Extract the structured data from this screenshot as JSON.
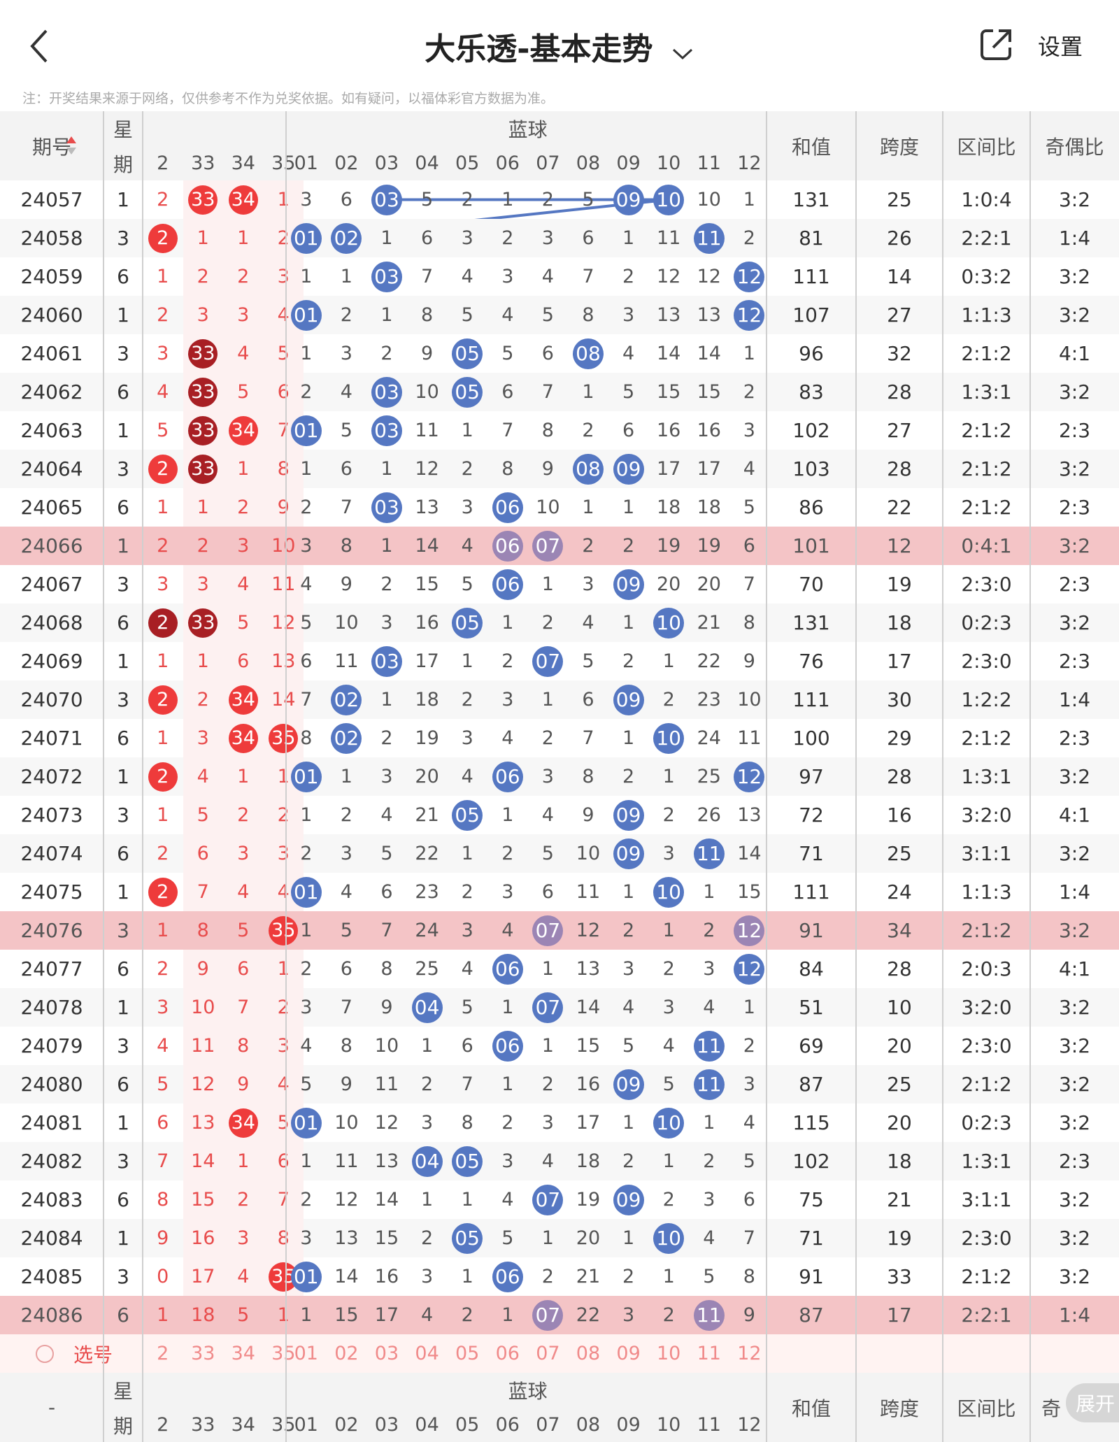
{
  "header": {
    "title": "大乐透-基本走势",
    "settings": "设置"
  },
  "note": "注：开奖结果来源于网络，仅供参考不作为兑奖依据。如有疑问，以福体彩官方数据为准。",
  "columns": {
    "period": "期号",
    "week_top": "星",
    "week_bottom": "期",
    "blue_title": "蓝球",
    "front_headers": [
      "2",
      "33",
      "34",
      "35"
    ],
    "blue_headers": [
      "01",
      "02",
      "03",
      "04",
      "05",
      "06",
      "07",
      "08",
      "09",
      "10",
      "11",
      "12"
    ],
    "sum": "和值",
    "span": "跨度",
    "zone": "区间比",
    "odd": "奇偶比"
  },
  "rows": [
    {
      "p": "24057",
      "w": "1",
      "f": [
        "2",
        "33",
        "34",
        "1"
      ],
      "fh": [
        0,
        1,
        1,
        0
      ],
      "b": [
        "3",
        "6",
        "03",
        "5",
        "2",
        "1",
        "2",
        "5",
        "09",
        "10",
        "10",
        "1"
      ],
      "s": "131",
      "sp": "25",
      "z": "1:0:4",
      "o": "3:2"
    },
    {
      "p": "24058",
      "w": "3",
      "f": [
        "2",
        "1",
        "1",
        "2"
      ],
      "fh": [
        1,
        0,
        0,
        0
      ],
      "b": [
        "01",
        "02",
        "1",
        "6",
        "3",
        "2",
        "3",
        "6",
        "1",
        "11",
        "11",
        "2"
      ],
      "s": "81",
      "sp": "26",
      "z": "2:2:1",
      "o": "1:4"
    },
    {
      "p": "24059",
      "w": "6",
      "f": [
        "1",
        "2",
        "2",
        "3"
      ],
      "fh": [
        0,
        0,
        0,
        0
      ],
      "b": [
        "1",
        "1",
        "03",
        "7",
        "4",
        "3",
        "4",
        "7",
        "2",
        "12",
        "12",
        "12"
      ],
      "s": "111",
      "sp": "14",
      "z": "0:3:2",
      "o": "3:2"
    },
    {
      "p": "24060",
      "w": "1",
      "f": [
        "2",
        "3",
        "3",
        "4"
      ],
      "fh": [
        0,
        0,
        0,
        0
      ],
      "b": [
        "01",
        "2",
        "1",
        "8",
        "5",
        "4",
        "5",
        "8",
        "3",
        "13",
        "13",
        "12"
      ],
      "s": "107",
      "sp": "27",
      "z": "1:1:3",
      "o": "3:2"
    },
    {
      "p": "24061",
      "w": "3",
      "f": [
        "3",
        "33",
        "4",
        "5"
      ],
      "fh": [
        0,
        2,
        0,
        0
      ],
      "b": [
        "1",
        "3",
        "2",
        "9",
        "05",
        "5",
        "6",
        "08",
        "4",
        "14",
        "14",
        "1"
      ],
      "s": "96",
      "sp": "32",
      "z": "2:1:2",
      "o": "4:1"
    },
    {
      "p": "24062",
      "w": "6",
      "f": [
        "4",
        "33",
        "5",
        "6"
      ],
      "fh": [
        0,
        2,
        0,
        0
      ],
      "b": [
        "2",
        "4",
        "03",
        "10",
        "05",
        "6",
        "7",
        "1",
        "5",
        "15",
        "15",
        "2"
      ],
      "s": "83",
      "sp": "28",
      "z": "1:3:1",
      "o": "3:2"
    },
    {
      "p": "24063",
      "w": "1",
      "f": [
        "5",
        "33",
        "34",
        "7"
      ],
      "fh": [
        0,
        2,
        1,
        0
      ],
      "b": [
        "01",
        "5",
        "03",
        "11",
        "1",
        "7",
        "8",
        "2",
        "6",
        "16",
        "16",
        "3"
      ],
      "s": "102",
      "sp": "27",
      "z": "2:1:2",
      "o": "2:3"
    },
    {
      "p": "24064",
      "w": "3",
      "f": [
        "2",
        "33",
        "1",
        "8"
      ],
      "fh": [
        1,
        2,
        0,
        0
      ],
      "b": [
        "1",
        "6",
        "1",
        "12",
        "2",
        "8",
        "9",
        "08",
        "09",
        "17",
        "17",
        "4"
      ],
      "s": "103",
      "sp": "28",
      "z": "2:1:2",
      "o": "3:2"
    },
    {
      "p": "24065",
      "w": "6",
      "f": [
        "1",
        "1",
        "2",
        "9"
      ],
      "fh": [
        0,
        0,
        0,
        0
      ],
      "b": [
        "2",
        "7",
        "03",
        "13",
        "3",
        "06",
        "10",
        "1",
        "1",
        "18",
        "18",
        "5"
      ],
      "s": "86",
      "sp": "22",
      "z": "2:1:2",
      "o": "2:3"
    },
    {
      "p": "24066",
      "w": "1",
      "f": [
        "2",
        "2",
        "3",
        "10"
      ],
      "fh": [
        0,
        0,
        0,
        0
      ],
      "b": [
        "3",
        "8",
        "1",
        "14",
        "4",
        "06",
        "07",
        "2",
        "2",
        "19",
        "19",
        "6"
      ],
      "s": "101",
      "sp": "12",
      "z": "0:4:1",
      "o": "3:2",
      "hl": true
    },
    {
      "p": "24067",
      "w": "3",
      "f": [
        "3",
        "3",
        "4",
        "11"
      ],
      "fh": [
        0,
        0,
        0,
        0
      ],
      "b": [
        "4",
        "9",
        "2",
        "15",
        "5",
        "06",
        "1",
        "3",
        "09",
        "20",
        "20",
        "7"
      ],
      "s": "70",
      "sp": "19",
      "z": "2:3:0",
      "o": "2:3"
    },
    {
      "p": "24068",
      "w": "6",
      "f": [
        "2",
        "33",
        "5",
        "12"
      ],
      "fh": [
        2,
        2,
        0,
        0
      ],
      "b": [
        "5",
        "10",
        "3",
        "16",
        "05",
        "1",
        "2",
        "4",
        "1",
        "10",
        "21",
        "8"
      ],
      "s": "131",
      "sp": "18",
      "z": "0:2:3",
      "o": "3:2"
    },
    {
      "p": "24069",
      "w": "1",
      "f": [
        "1",
        "1",
        "6",
        "13"
      ],
      "fh": [
        0,
        0,
        0,
        0
      ],
      "b": [
        "6",
        "11",
        "03",
        "17",
        "1",
        "2",
        "07",
        "5",
        "2",
        "1",
        "22",
        "9"
      ],
      "s": "76",
      "sp": "17",
      "z": "2:3:0",
      "o": "2:3"
    },
    {
      "p": "24070",
      "w": "3",
      "f": [
        "2",
        "2",
        "34",
        "14"
      ],
      "fh": [
        1,
        0,
        1,
        0
      ],
      "b": [
        "7",
        "02",
        "1",
        "18",
        "2",
        "3",
        "1",
        "6",
        "09",
        "2",
        "23",
        "10"
      ],
      "s": "111",
      "sp": "30",
      "z": "1:2:2",
      "o": "1:4"
    },
    {
      "p": "24071",
      "w": "6",
      "f": [
        "1",
        "3",
        "34",
        "35"
      ],
      "fh": [
        0,
        0,
        1,
        1
      ],
      "b": [
        "8",
        "02",
        "2",
        "19",
        "3",
        "4",
        "2",
        "7",
        "1",
        "10",
        "24",
        "11"
      ],
      "s": "100",
      "sp": "29",
      "z": "2:1:2",
      "o": "2:3"
    },
    {
      "p": "24072",
      "w": "1",
      "f": [
        "2",
        "4",
        "1",
        "1"
      ],
      "fh": [
        1,
        0,
        0,
        0
      ],
      "b": [
        "01",
        "1",
        "3",
        "20",
        "4",
        "06",
        "3",
        "8",
        "2",
        "1",
        "25",
        "12"
      ],
      "s": "97",
      "sp": "28",
      "z": "1:3:1",
      "o": "3:2"
    },
    {
      "p": "24073",
      "w": "3",
      "f": [
        "1",
        "5",
        "2",
        "2"
      ],
      "fh": [
        0,
        0,
        0,
        0
      ],
      "b": [
        "1",
        "2",
        "4",
        "21",
        "05",
        "1",
        "4",
        "9",
        "09",
        "2",
        "26",
        "13"
      ],
      "s": "72",
      "sp": "16",
      "z": "3:2:0",
      "o": "4:1"
    },
    {
      "p": "24074",
      "w": "6",
      "f": [
        "2",
        "6",
        "3",
        "3"
      ],
      "fh": [
        0,
        0,
        0,
        0
      ],
      "b": [
        "2",
        "3",
        "5",
        "22",
        "1",
        "2",
        "5",
        "10",
        "09",
        "3",
        "11",
        "14"
      ],
      "s": "71",
      "sp": "25",
      "z": "3:1:1",
      "o": "3:2"
    },
    {
      "p": "24075",
      "w": "1",
      "f": [
        "2",
        "7",
        "4",
        "4"
      ],
      "fh": [
        1,
        0,
        0,
        0
      ],
      "b": [
        "01",
        "4",
        "6",
        "23",
        "2",
        "3",
        "6",
        "11",
        "1",
        "10",
        "1",
        "15"
      ],
      "s": "111",
      "sp": "24",
      "z": "1:1:3",
      "o": "1:4"
    },
    {
      "p": "24076",
      "w": "3",
      "f": [
        "1",
        "8",
        "5",
        "35"
      ],
      "fh": [
        0,
        0,
        0,
        1
      ],
      "b": [
        "1",
        "5",
        "7",
        "24",
        "3",
        "4",
        "07",
        "12",
        "2",
        "1",
        "2",
        "12"
      ],
      "s": "91",
      "sp": "34",
      "z": "2:1:2",
      "o": "3:2",
      "hl": true
    },
    {
      "p": "24077",
      "w": "6",
      "f": [
        "2",
        "9",
        "6",
        "1"
      ],
      "fh": [
        0,
        0,
        0,
        0
      ],
      "b": [
        "2",
        "6",
        "8",
        "25",
        "4",
        "06",
        "1",
        "13",
        "3",
        "2",
        "3",
        "12"
      ],
      "s": "84",
      "sp": "28",
      "z": "2:0:3",
      "o": "4:1"
    },
    {
      "p": "24078",
      "w": "1",
      "f": [
        "3",
        "10",
        "7",
        "2"
      ],
      "fh": [
        0,
        0,
        0,
        0
      ],
      "b": [
        "3",
        "7",
        "9",
        "04",
        "5",
        "1",
        "07",
        "14",
        "4",
        "3",
        "4",
        "1"
      ],
      "s": "51",
      "sp": "10",
      "z": "3:2:0",
      "o": "3:2"
    },
    {
      "p": "24079",
      "w": "3",
      "f": [
        "4",
        "11",
        "8",
        "3"
      ],
      "fh": [
        0,
        0,
        0,
        0
      ],
      "b": [
        "4",
        "8",
        "10",
        "1",
        "6",
        "06",
        "1",
        "15",
        "5",
        "4",
        "11",
        "2"
      ],
      "s": "69",
      "sp": "20",
      "z": "2:3:0",
      "o": "3:2"
    },
    {
      "p": "24080",
      "w": "6",
      "f": [
        "5",
        "12",
        "9",
        "4"
      ],
      "fh": [
        0,
        0,
        0,
        0
      ],
      "b": [
        "5",
        "9",
        "11",
        "2",
        "7",
        "1",
        "2",
        "16",
        "09",
        "5",
        "11",
        "3"
      ],
      "s": "87",
      "sp": "25",
      "z": "2:1:2",
      "o": "3:2"
    },
    {
      "p": "24081",
      "w": "1",
      "f": [
        "6",
        "13",
        "34",
        "5"
      ],
      "fh": [
        0,
        0,
        1,
        0
      ],
      "b": [
        "01",
        "10",
        "12",
        "3",
        "8",
        "2",
        "3",
        "17",
        "1",
        "10",
        "1",
        "4"
      ],
      "s": "115",
      "sp": "20",
      "z": "0:2:3",
      "o": "3:2"
    },
    {
      "p": "24082",
      "w": "3",
      "f": [
        "7",
        "14",
        "1",
        "6"
      ],
      "fh": [
        0,
        0,
        0,
        0
      ],
      "b": [
        "1",
        "11",
        "13",
        "04",
        "05",
        "3",
        "4",
        "18",
        "2",
        "1",
        "2",
        "5"
      ],
      "s": "102",
      "sp": "18",
      "z": "1:3:1",
      "o": "2:3"
    },
    {
      "p": "24083",
      "w": "6",
      "f": [
        "8",
        "15",
        "2",
        "7"
      ],
      "fh": [
        0,
        0,
        0,
        0
      ],
      "b": [
        "2",
        "12",
        "14",
        "1",
        "1",
        "4",
        "07",
        "19",
        "09",
        "2",
        "3",
        "6"
      ],
      "s": "75",
      "sp": "21",
      "z": "3:1:1",
      "o": "3:2"
    },
    {
      "p": "24084",
      "w": "1",
      "f": [
        "9",
        "16",
        "3",
        "8"
      ],
      "fh": [
        0,
        0,
        0,
        0
      ],
      "b": [
        "3",
        "13",
        "15",
        "2",
        "05",
        "5",
        "1",
        "20",
        "1",
        "10",
        "4",
        "7"
      ],
      "s": "71",
      "sp": "19",
      "z": "2:3:0",
      "o": "3:2"
    },
    {
      "p": "24085",
      "w": "3",
      "f": [
        "0",
        "17",
        "4",
        "35"
      ],
      "fh": [
        0,
        0,
        0,
        1
      ],
      "b": [
        "01",
        "14",
        "16",
        "3",
        "1",
        "06",
        "2",
        "21",
        "2",
        "1",
        "5",
        "8"
      ],
      "s": "91",
      "sp": "33",
      "z": "2:1:2",
      "o": "3:2"
    },
    {
      "p": "24086",
      "w": "6",
      "f": [
        "1",
        "18",
        "5",
        "1"
      ],
      "fh": [
        0,
        0,
        0,
        0
      ],
      "b": [
        "1",
        "15",
        "17",
        "4",
        "2",
        "1",
        "07",
        "22",
        "3",
        "2",
        "11",
        "9"
      ],
      "s": "87",
      "sp": "17",
      "z": "2:2:1",
      "o": "1:4",
      "hl": true
    }
  ],
  "select_row": {
    "label": "选号"
  },
  "footer": {
    "period": "-",
    "odd_short": "奇",
    "expand": "展开"
  },
  "colors": {
    "red": "#ee3b3b",
    "dark_red": "#a81f24",
    "blue": "#5577c2",
    "highlight": "#f4c4c6",
    "blue_line": "#5577c2"
  }
}
